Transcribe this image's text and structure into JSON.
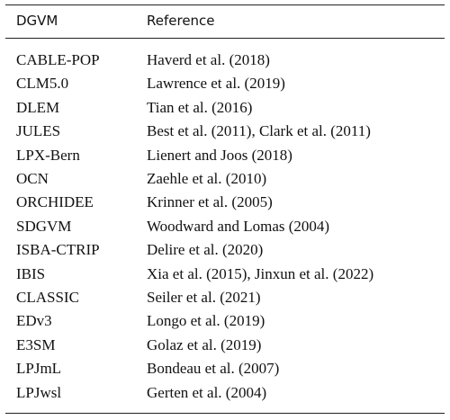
{
  "table": {
    "header": [
      "DGVM",
      "Reference"
    ],
    "rows": [
      [
        "CABLE-POP",
        "Haverd et al. (2018)"
      ],
      [
        "CLM5.0",
        "Lawrence et al. (2019)"
      ],
      [
        "DLEM",
        "Tian et al. (2016)"
      ],
      [
        "JULES",
        "Best et al. (2011), Clark et al. (2011)"
      ],
      [
        "LPX-Bern",
        "Lienert and Joos (2018)"
      ],
      [
        "OCN",
        "Zaehle et al. (2010)"
      ],
      [
        "ORCHIDEE",
        "Krinner et al. (2005)"
      ],
      [
        "SDGVM",
        "Woodward and Lomas (2004)"
      ],
      [
        "ISBA-CTRIP",
        "Delire et al. (2020)"
      ],
      [
        "IBIS",
        "Xia et al. (2015), Jinxun et al. (2022)"
      ],
      [
        "CLASSIC",
        "Seiler et al. (2021)"
      ],
      [
        "EDv3",
        "Longo et al. (2019)"
      ],
      [
        "E3SM",
        "Golaz et al. (2019)"
      ],
      [
        "LPJmL",
        "Bondeau et al. (2007)"
      ],
      [
        "LPJwsl",
        "Gerten et al. (2004)"
      ]
    ]
  }
}
